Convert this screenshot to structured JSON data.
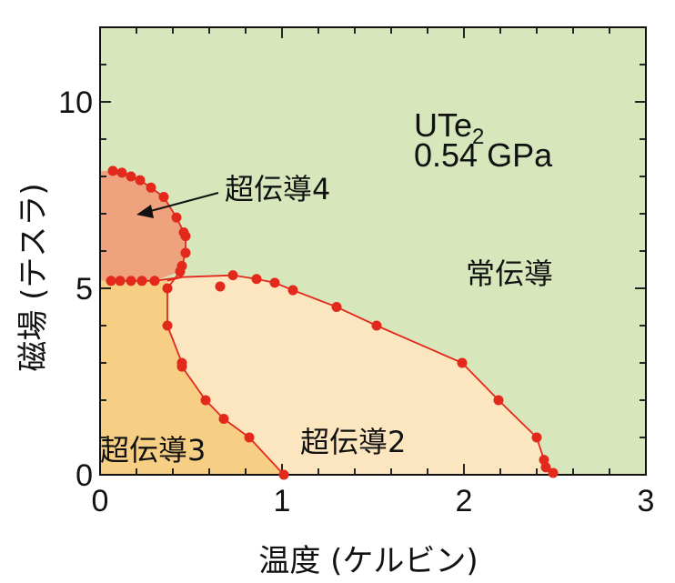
{
  "chart_data": {
    "type": "scatter",
    "xlabel": "温度 (ケルビン)",
    "ylabel": "磁場 (テスラ)",
    "xlim": [
      0,
      3
    ],
    "ylim": [
      0,
      12
    ],
    "xticks": [
      "0",
      "1",
      "2",
      "3"
    ],
    "yticks": [
      "0",
      "5",
      "10"
    ],
    "x_minor_step": 0.2,
    "y_minor_step": 1,
    "grid": false,
    "annotation": {
      "material_main": "UTe",
      "material_sub": "2",
      "pressure": "0.54 GPa"
    },
    "region_labels": {
      "normal": "常伝導",
      "sc2": "超伝導2",
      "sc3": "超伝導3",
      "sc4": "超伝導4"
    },
    "colors": {
      "background": "#d8e7bb",
      "normal": "#d8e7bb",
      "sc2": "#fbe6c0",
      "sc3": "#f6cf84",
      "sc4": "#eea27e",
      "points": "#e3281c",
      "lines": "#e3281c"
    },
    "series": [
      {
        "points": [
          [
            0.07,
            8.15
          ],
          [
            0.12,
            8.1
          ],
          [
            0.17,
            8.0
          ],
          [
            0.22,
            7.9
          ],
          [
            0.28,
            7.7
          ],
          [
            0.35,
            7.45
          ],
          [
            0.42,
            6.9
          ],
          [
            0.46,
            6.5
          ],
          [
            0.47,
            6.4
          ],
          [
            0.47,
            5.95
          ],
          [
            0.45,
            5.6
          ],
          [
            0.44,
            5.45
          ]
        ]
      },
      {
        "points": [
          [
            0.06,
            5.2
          ],
          [
            0.11,
            5.2
          ],
          [
            0.17,
            5.2
          ],
          [
            0.23,
            5.2
          ],
          [
            0.3,
            5.2
          ]
        ]
      },
      {
        "points": [
          [
            0.37,
            5.0
          ],
          [
            0.37,
            4.0
          ],
          [
            0.45,
            3.0
          ],
          [
            0.45,
            2.9
          ],
          [
            0.58,
            2.0
          ],
          [
            0.68,
            1.5
          ],
          [
            0.82,
            1.0
          ],
          [
            1.01,
            0.0
          ]
        ]
      },
      {
        "points": [
          [
            0.66,
            5.05
          ],
          [
            0.73,
            5.35
          ],
          [
            0.86,
            5.25
          ],
          [
            0.96,
            5.15
          ],
          [
            1.06,
            4.95
          ],
          [
            1.3,
            4.5
          ],
          [
            1.52,
            4.0
          ],
          [
            1.99,
            3.0
          ],
          [
            2.19,
            2.0
          ],
          [
            2.4,
            1.0
          ],
          [
            2.44,
            0.4
          ],
          [
            2.45,
            0.2
          ],
          [
            2.49,
            0.05
          ]
        ]
      }
    ]
  }
}
